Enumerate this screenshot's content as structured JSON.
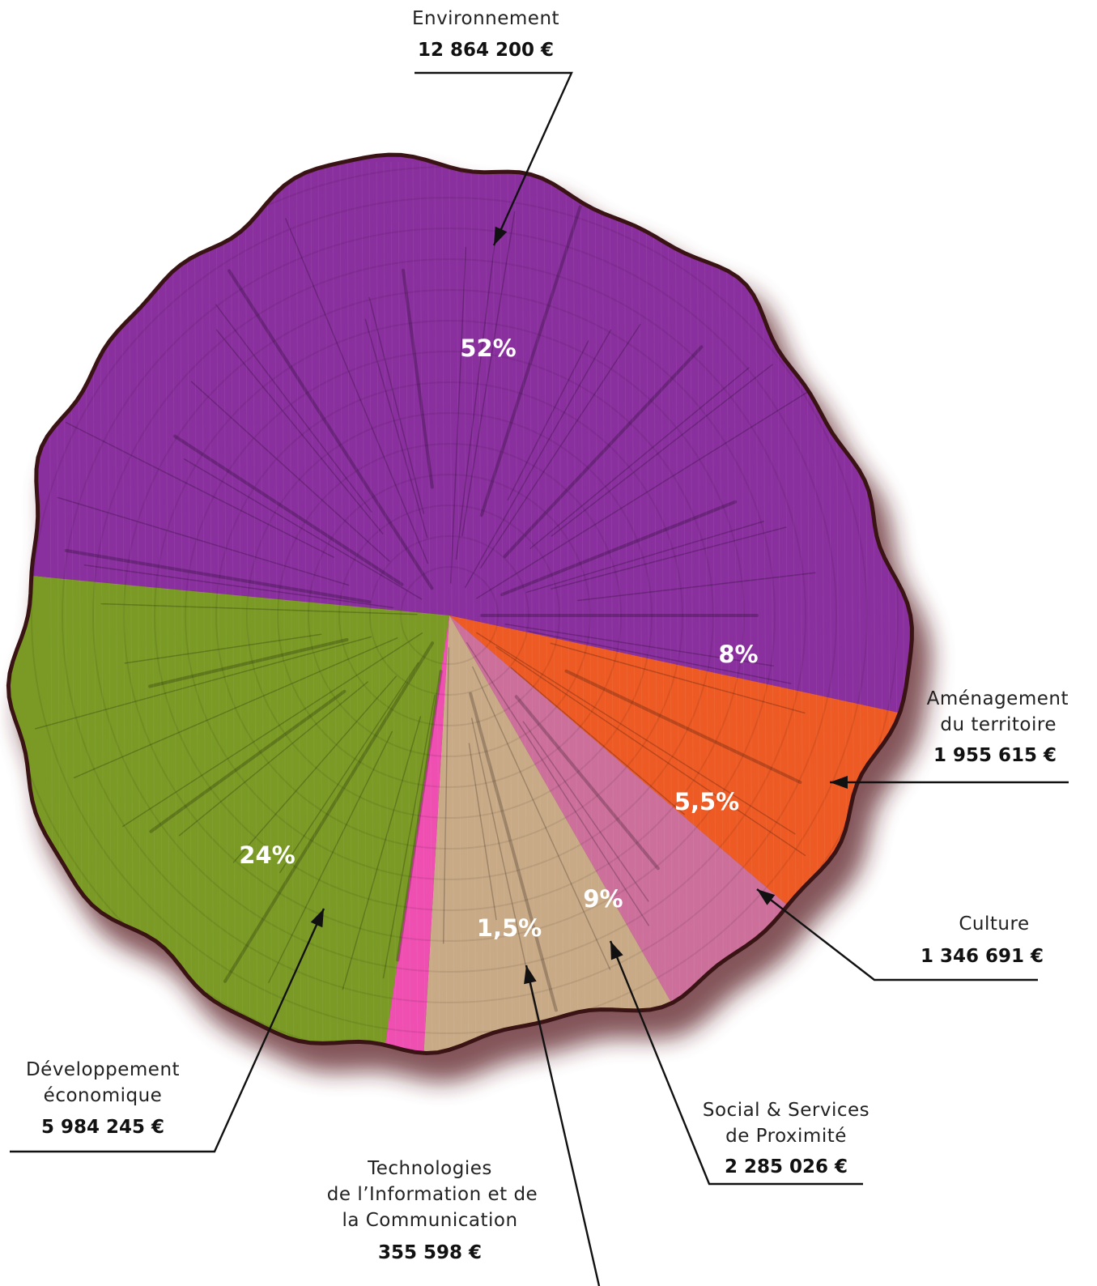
{
  "chart_data": {
    "type": "pie",
    "title": "",
    "unit": "€",
    "slices": [
      {
        "key": "environnement",
        "lines": [
          "Environnement"
        ],
        "amount": "12 864 200 €",
        "value": 12864200,
        "pct_label": "52%",
        "color": "#8a2f9e"
      },
      {
        "key": "amenagement",
        "lines": [
          "Aménagement",
          "du territoire"
        ],
        "amount": "1 955 615 €",
        "value": 1955615,
        "pct_label": "8%",
        "color": "#ee5a24"
      },
      {
        "key": "culture",
        "lines": [
          "Culture"
        ],
        "amount": "1 346 691 €",
        "value": 1346691,
        "pct_label": "5,5%",
        "color": "#cc6f9b"
      },
      {
        "key": "social",
        "lines": [
          "Social & Services",
          "de Proximité"
        ],
        "amount": "2 285 026 €",
        "value": 2285026,
        "pct_label": "9%",
        "color": "#c9aa86"
      },
      {
        "key": "tic",
        "lines": [
          "Technologies",
          "de l’Information et de",
          "la Communication"
        ],
        "amount": "355 598 €",
        "value": 355598,
        "pct_label": "1,5%",
        "color": "#ee4fb1"
      },
      {
        "key": "developpement",
        "lines": [
          "Développement",
          "économique"
        ],
        "amount": "5 984 245 €",
        "value": 5984245,
        "pct_label": "24%",
        "color": "#7a9a25"
      }
    ]
  }
}
